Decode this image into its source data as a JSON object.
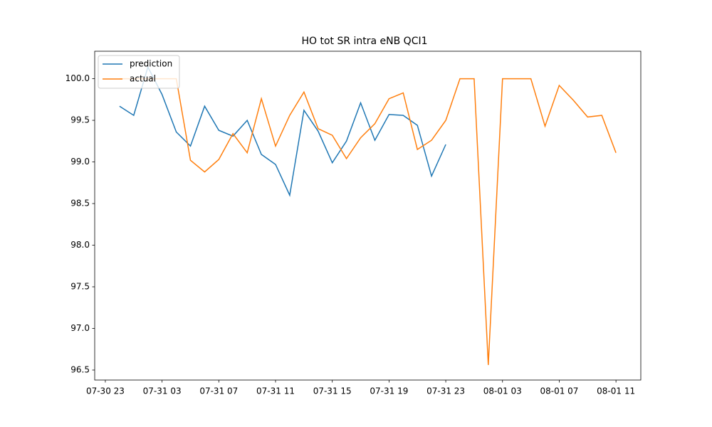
{
  "chart_data": {
    "type": "line",
    "title": "HO tot SR intra eNB QCI1",
    "x": [
      "07-31 00",
      "07-31 01",
      "07-31 02",
      "07-31 03",
      "07-31 04",
      "07-31 05",
      "07-31 06",
      "07-31 07",
      "07-31 08",
      "07-31 09",
      "07-31 10",
      "07-31 11",
      "07-31 12",
      "07-31 13",
      "07-31 14",
      "07-31 15",
      "07-31 16",
      "07-31 17",
      "07-31 18",
      "07-31 19",
      "07-31 20",
      "07-31 21",
      "07-31 22",
      "07-31 23",
      "08-01 00",
      "08-01 01",
      "08-01 02",
      "08-01 03",
      "08-01 04",
      "08-01 05",
      "08-01 06",
      "08-01 07",
      "08-01 08",
      "08-01 09",
      "08-01 10",
      "08-01 11"
    ],
    "series": [
      {
        "name": "prediction",
        "color": "#1f77b4",
        "values": [
          99.67,
          99.56,
          100.14,
          99.81,
          99.36,
          99.19,
          99.67,
          99.38,
          99.31,
          99.5,
          99.09,
          98.97,
          98.6,
          99.62,
          99.37,
          98.99,
          99.25,
          99.71,
          99.26,
          99.57,
          99.56,
          99.44,
          98.83,
          99.21,
          null,
          null,
          null,
          null,
          null,
          null,
          null,
          null,
          null,
          null,
          null,
          null
        ]
      },
      {
        "name": "actual",
        "color": "#ff7f0e",
        "values": [
          100.0,
          100.0,
          100.0,
          100.0,
          100.0,
          99.02,
          98.88,
          99.03,
          99.34,
          99.11,
          99.76,
          99.19,
          99.56,
          99.84,
          99.4,
          99.32,
          99.04,
          99.29,
          99.46,
          99.76,
          99.83,
          99.15,
          99.26,
          99.5,
          100.0,
          100.0,
          96.56,
          100.0,
          100.0,
          100.0,
          99.43,
          99.92,
          99.74,
          99.54,
          99.56,
          99.11
        ]
      }
    ],
    "xticks": [
      "07-30 23",
      "07-31 03",
      "07-31 07",
      "07-31 11",
      "07-31 15",
      "07-31 19",
      "07-31 23",
      "08-01 03",
      "08-01 07",
      "08-01 11"
    ],
    "ylim": [
      96.38,
      100.33
    ],
    "yticks": [
      {
        "value": 96.5,
        "label": "96.5"
      },
      {
        "value": 97,
        "label": "97.0"
      },
      97.5,
      {
        "value": 98,
        "label": "98.0"
      },
      98.5,
      {
        "value": 99,
        "label": "99.0"
      },
      99.5,
      {
        "value": 100,
        "label": "100.0"
      }
    ],
    "legend": "upper left"
  }
}
